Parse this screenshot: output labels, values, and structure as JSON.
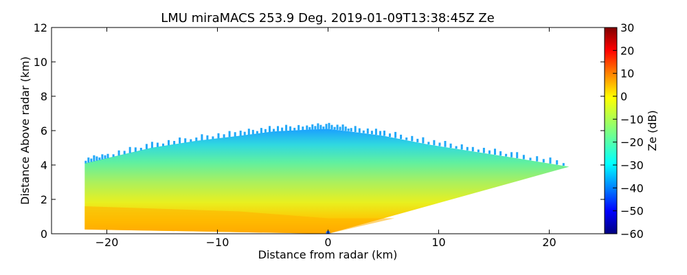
{
  "chart_data": {
    "type": "heatmap",
    "title": "LMU miraMACS 253.9 Deg. 2019-01-09T13:38:45Z  Ze",
    "xlabel": "Distance from radar (km)",
    "ylabel": "Distance Above radar  (km)",
    "xlim": [
      -25,
      25
    ],
    "ylim": [
      0,
      12
    ],
    "xticks": [
      -20,
      -10,
      0,
      10,
      20
    ],
    "yticks": [
      0,
      2,
      4,
      6,
      8,
      10,
      12
    ],
    "colorbar": {
      "label": "Ze (dB)",
      "range": [
        -60,
        30
      ],
      "ticks": [
        30,
        20,
        10,
        0,
        -10,
        -20,
        -30,
        -40,
        -50,
        -60
      ],
      "colormap": "jet"
    },
    "echo_region": {
      "left_edge_x": -22,
      "left_edge_top": 4.1,
      "right_edge_x": 21.8,
      "right_edge_top": 3.9,
      "center_top": 6.1,
      "ze_near_surface": 5,
      "ze_mid": -15,
      "ze_top": -30
    }
  }
}
